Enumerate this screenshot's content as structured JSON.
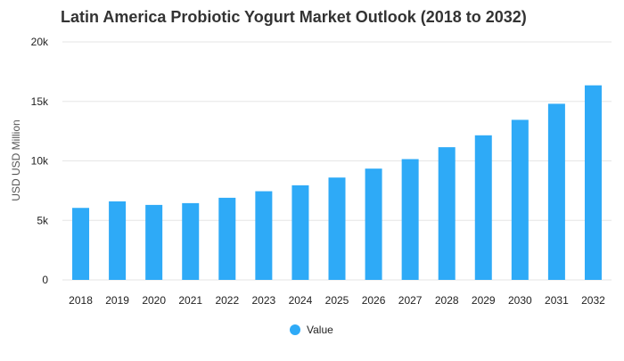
{
  "chart_data": {
    "type": "bar",
    "title": "Latin America Probiotic Yogurt Market Outlook (2018 to 2032)",
    "xlabel": "",
    "ylabel": "USD USD Million",
    "categories": [
      "2018",
      "2019",
      "2020",
      "2021",
      "2022",
      "2023",
      "2024",
      "2025",
      "2026",
      "2027",
      "2028",
      "2029",
      "2030",
      "2031",
      "2032"
    ],
    "series": [
      {
        "name": "Value",
        "color": "#2eaaf7",
        "values": [
          6050,
          6600,
          6300,
          6450,
          6900,
          7450,
          7950,
          8600,
          9350,
          10150,
          11150,
          12150,
          13450,
          14800,
          16350
        ]
      }
    ],
    "ylim": [
      0,
      20000
    ],
    "yticks": [
      0,
      5000,
      10000,
      15000,
      20000
    ],
    "ytick_labels": [
      "0",
      "5k",
      "10k",
      "15k",
      "20k"
    ],
    "grid": true,
    "legend_position": "bottom-center"
  }
}
